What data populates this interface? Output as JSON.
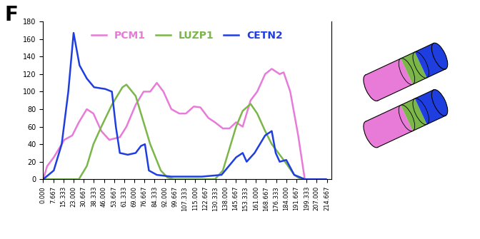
{
  "panel_label": "F",
  "chart_data": {
    "type": "line",
    "xlim": [
      0,
      218
    ],
    "ylim": [
      0,
      180
    ],
    "yticks": [
      0,
      20,
      40,
      60,
      80,
      100,
      120,
      140,
      160,
      180
    ],
    "xticks": [
      {
        "value": 0.0,
        "label": "0.000"
      },
      {
        "value": 7.667,
        "label": "7.667"
      },
      {
        "value": 15.333,
        "label": "15.333"
      },
      {
        "value": 23.0,
        "label": "23.000"
      },
      {
        "value": 30.667,
        "label": "30.667"
      },
      {
        "value": 38.333,
        "label": "38.333"
      },
      {
        "value": 46.0,
        "label": "46.000"
      },
      {
        "value": 53.667,
        "label": "53.667"
      },
      {
        "value": 61.333,
        "label": "61.333"
      },
      {
        "value": 69.0,
        "label": "69.000"
      },
      {
        "value": 76.667,
        "label": "76.667"
      },
      {
        "value": 84.333,
        "label": "84.333"
      },
      {
        "value": 92.0,
        "label": "92.000"
      },
      {
        "value": 99.667,
        "label": "99.667"
      },
      {
        "value": 107.333,
        "label": "107.333"
      },
      {
        "value": 115.0,
        "label": "115.000"
      },
      {
        "value": 122.667,
        "label": "122.667"
      },
      {
        "value": 130.333,
        "label": "130.333"
      },
      {
        "value": 138.0,
        "label": "138.000"
      },
      {
        "value": 145.667,
        "label": "145.667"
      },
      {
        "value": 153.333,
        "label": "153.333"
      },
      {
        "value": 161.0,
        "label": "161.000"
      },
      {
        "value": 168.667,
        "label": "168.667"
      },
      {
        "value": 176.333,
        "label": "176.333"
      },
      {
        "value": 184.0,
        "label": "184.000"
      },
      {
        "value": 191.667,
        "label": "191.667"
      },
      {
        "value": 199.333,
        "label": "199.333"
      },
      {
        "value": 207.0,
        "label": "207.000"
      },
      {
        "value": 214.667,
        "label": "214.667"
      }
    ],
    "legend": "upper center",
    "grid": false,
    "series": [
      {
        "name": "PCM1",
        "color": "#e87ad8",
        "x": [
          0,
          3,
          8,
          16,
          22,
          27,
          33,
          38,
          44,
          50,
          58,
          63,
          70,
          76,
          81,
          86,
          91,
          97,
          103,
          108,
          114,
          119,
          125,
          130,
          136,
          141,
          146,
          151,
          157,
          162,
          168,
          173,
          179,
          182,
          187,
          193,
          198
        ],
        "values": [
          0,
          15,
          25,
          45,
          50,
          65,
          80,
          75,
          55,
          45,
          48,
          60,
          85,
          100,
          100,
          110,
          100,
          80,
          75,
          75,
          83,
          82,
          70,
          65,
          58,
          58,
          65,
          60,
          90,
          100,
          120,
          126,
          120,
          122,
          100,
          50,
          0
        ]
      },
      {
        "name": "LUZP1",
        "color": "#7ab648",
        "x": [
          0,
          27,
          33,
          38,
          44,
          52,
          60,
          63,
          70,
          76,
          81,
          89,
          94,
          99,
          130,
          136,
          141,
          146,
          151,
          157,
          162,
          168,
          173,
          179,
          184,
          190,
          195,
          214
        ],
        "values": [
          0,
          0,
          15,
          40,
          60,
          85,
          105,
          108,
          95,
          65,
          40,
          10,
          2,
          0,
          0,
          10,
          35,
          60,
          78,
          86,
          75,
          55,
          40,
          28,
          18,
          5,
          0,
          0
        ]
      },
      {
        "name": "CETN2",
        "color": "#1f3ee0",
        "x": [
          0,
          8,
          14,
          19,
          23,
          27.5,
          33,
          38.5,
          47,
          52,
          55,
          58,
          64,
          70,
          74,
          77,
          80,
          86,
          97,
          120,
          135,
          146,
          151,
          154,
          160,
          168,
          173,
          176,
          179,
          184,
          190,
          198,
          214
        ],
        "values": [
          0,
          10,
          40,
          100,
          167,
          130,
          115,
          105,
          103,
          100,
          60,
          30,
          28,
          30,
          38,
          40,
          10,
          5,
          3,
          3,
          5,
          25,
          30,
          20,
          30,
          50,
          55,
          30,
          20,
          22,
          5,
          0,
          0
        ]
      }
    ]
  }
}
